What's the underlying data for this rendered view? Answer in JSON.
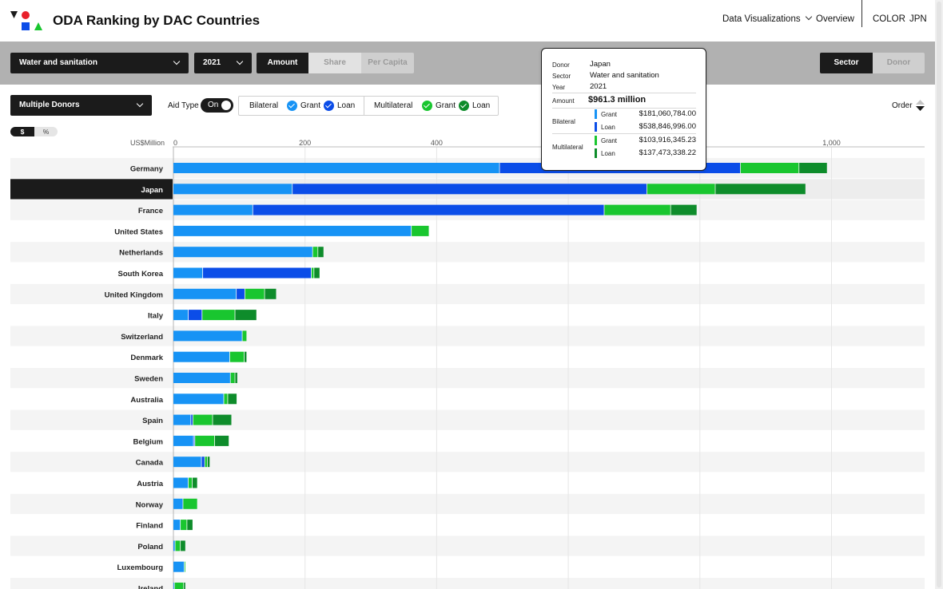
{
  "header": {
    "title": "ODA Ranking by DAC Countries",
    "nav": {
      "data_visualizations": "Data Visualizations",
      "overview": "Overview",
      "color": "COLOR",
      "jpn": "JPN"
    }
  },
  "filters": {
    "sector": "Water and sanitation",
    "year": "2021",
    "measure": {
      "options": [
        "Amount",
        "Share",
        "Per Capita"
      ],
      "selected": "Amount"
    },
    "view": {
      "options": [
        "Sector",
        "Donor"
      ],
      "selected": "Sector"
    },
    "donor": "Multiple Donors",
    "aid_type": {
      "label": "Aid Type",
      "toggle": "On",
      "bilateral": "Bilateral",
      "multilateral": "Multilateral",
      "grant": "Grant",
      "loan": "Loan"
    },
    "order": "Order",
    "units": {
      "options": [
        "$",
        "%"
      ],
      "selected": "$"
    }
  },
  "colors": {
    "bilateral_grant": "#1793f5",
    "bilateral_loan": "#0b4de8",
    "multilateral_grant": "#19c62f",
    "multilateral_loan": "#0e8c2b",
    "highlight_row": "#1b1b1b"
  },
  "chart_data": {
    "type": "bar",
    "orientation": "horizontal",
    "stacked": true,
    "xlabel": "US$Million",
    "xlim": [
      0,
      1100
    ],
    "x_ticks": [
      0,
      200,
      400,
      600,
      800,
      1000
    ],
    "x_tick_labels": [
      "0",
      "200",
      "400",
      "",
      "",
      "1,000"
    ],
    "grid": true,
    "highlighted": "Japan",
    "categories": [
      "Germany",
      "Japan",
      "France",
      "United States",
      "Netherlands",
      "South Korea",
      "United Kingdom",
      "Italy",
      "Switzerland",
      "Denmark",
      "Sweden",
      "Australia",
      "Spain",
      "Belgium",
      "Canada",
      "Austria",
      "Norway",
      "Finland",
      "Poland",
      "Luxembourg",
      "Ireland"
    ],
    "series": [
      {
        "name": "Bilateral Grant",
        "values": [
          496,
          181.1,
          121,
          362,
          212,
          45,
          96,
          23,
          105,
          86,
          87,
          77,
          27,
          31,
          43,
          23,
          15,
          11,
          3,
          17,
          2
        ]
      },
      {
        "name": "Bilateral Loan",
        "values": [
          366,
          538.8,
          534,
          0,
          0,
          165,
          13,
          21,
          0,
          0,
          0,
          0,
          3,
          2,
          5,
          0,
          0,
          0,
          0,
          0,
          0
        ]
      },
      {
        "name": "Multilateral Grant",
        "values": [
          89,
          103.9,
          101,
          27,
          8,
          4,
          30,
          50,
          7,
          22,
          7,
          6,
          30,
          30,
          4,
          6,
          22,
          10,
          8,
          1,
          14
        ]
      },
      {
        "name": "Multilateral Loan",
        "values": [
          43,
          137.5,
          40,
          0,
          9,
          9,
          18,
          33,
          0,
          4,
          4,
          14,
          29,
          22,
          4,
          8,
          0,
          9,
          8,
          0,
          3
        ]
      }
    ]
  },
  "tooltip": {
    "donor_label": "Donor",
    "donor": "Japan",
    "sector_label": "Sector",
    "sector": "Water and sanitation",
    "year_label": "Year",
    "year": "2021",
    "amount_label": "Amount",
    "amount": "$961.3 million",
    "bilateral_label": "Bilateral",
    "multilateral_label": "Multilateral",
    "grant_label": "Grant",
    "loan_label": "Loan",
    "bilateral_grant": "$181,060,784.00",
    "bilateral_loan": "$538,846,996.00",
    "multilateral_grant": "$103,916,345.23",
    "multilateral_loan": "$137,473,338.22"
  }
}
